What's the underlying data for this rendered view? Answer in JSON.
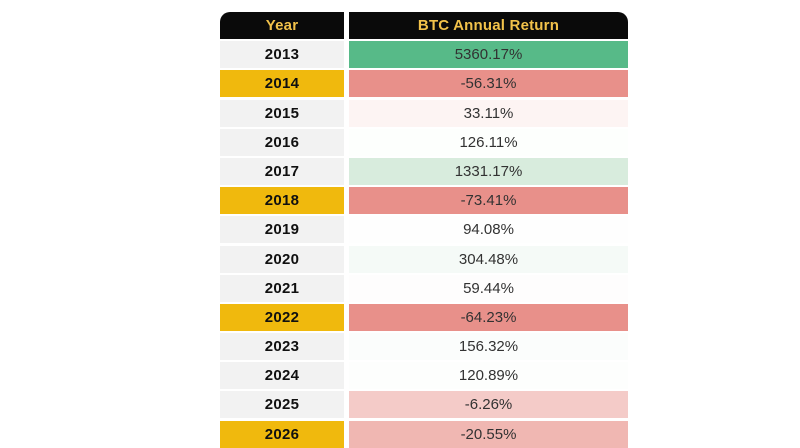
{
  "table": {
    "columns": [
      {
        "label": "Year"
      },
      {
        "label": "BTC Annual Return"
      }
    ],
    "rows": [
      {
        "year": "2013",
        "value": "5360.17%",
        "year_bg": "#f2f2f2",
        "value_bg": "#57ba88"
      },
      {
        "year": "2014",
        "value": "-56.31%",
        "year_bg": "#f0b90d",
        "value_bg": "#e8908a"
      },
      {
        "year": "2015",
        "value": "33.11%",
        "year_bg": "#f2f2f2",
        "value_bg": "#fdf4f3"
      },
      {
        "year": "2016",
        "value": "126.11%",
        "year_bg": "#f2f2f2",
        "value_bg": "#fdfffd"
      },
      {
        "year": "2017",
        "value": "1331.17%",
        "year_bg": "#f2f2f2",
        "value_bg": "#d8ecdd"
      },
      {
        "year": "2018",
        "value": "-73.41%",
        "year_bg": "#f0b90d",
        "value_bg": "#e8908a"
      },
      {
        "year": "2019",
        "value": "94.08%",
        "year_bg": "#f2f2f2",
        "value_bg": "#fefefe"
      },
      {
        "year": "2020",
        "value": "304.48%",
        "year_bg": "#f2f2f2",
        "value_bg": "#f5faf7"
      },
      {
        "year": "2021",
        "value": "59.44%",
        "year_bg": "#f2f2f2",
        "value_bg": "#fefdfd"
      },
      {
        "year": "2022",
        "value": "-64.23%",
        "year_bg": "#f0b90d",
        "value_bg": "#e8908a"
      },
      {
        "year": "2023",
        "value": "156.32%",
        "year_bg": "#f2f2f2",
        "value_bg": "#fbfdfc"
      },
      {
        "year": "2024",
        "value": "120.89%",
        "year_bg": "#f2f2f2",
        "value_bg": "#fdfefd"
      },
      {
        "year": "2025",
        "value": "-6.26%",
        "year_bg": "#f2f2f2",
        "value_bg": "#f4cbc8"
      },
      {
        "year": "2026",
        "value": "-20.55%",
        "year_bg": "#f0b90d",
        "value_bg": "#f0b7b2"
      }
    ]
  },
  "colors": {
    "header_bg": "#0a0a0a",
    "header_text": "#f2c24a",
    "year_default_bg": "#f2f2f2",
    "year_highlight_bg": "#f0b90d",
    "positive_strong_bg": "#57ba88",
    "negative_strong_bg": "#e8908a",
    "negative_mild_bg": "#f4cbc8"
  },
  "chart_data": {
    "type": "table",
    "title": "BTC Annual Return by Year",
    "categories": [
      "2013",
      "2014",
      "2015",
      "2016",
      "2017",
      "2018",
      "2019",
      "2020",
      "2021",
      "2022",
      "2023",
      "2024",
      "2025",
      "2026"
    ],
    "values": [
      5360.17,
      -56.31,
      33.11,
      126.11,
      1331.17,
      -73.41,
      94.08,
      304.48,
      59.44,
      -64.23,
      156.32,
      120.89,
      -6.26,
      -20.55
    ],
    "columns": [
      "Year",
      "BTC Annual Return"
    ],
    "value_unit": "%"
  }
}
